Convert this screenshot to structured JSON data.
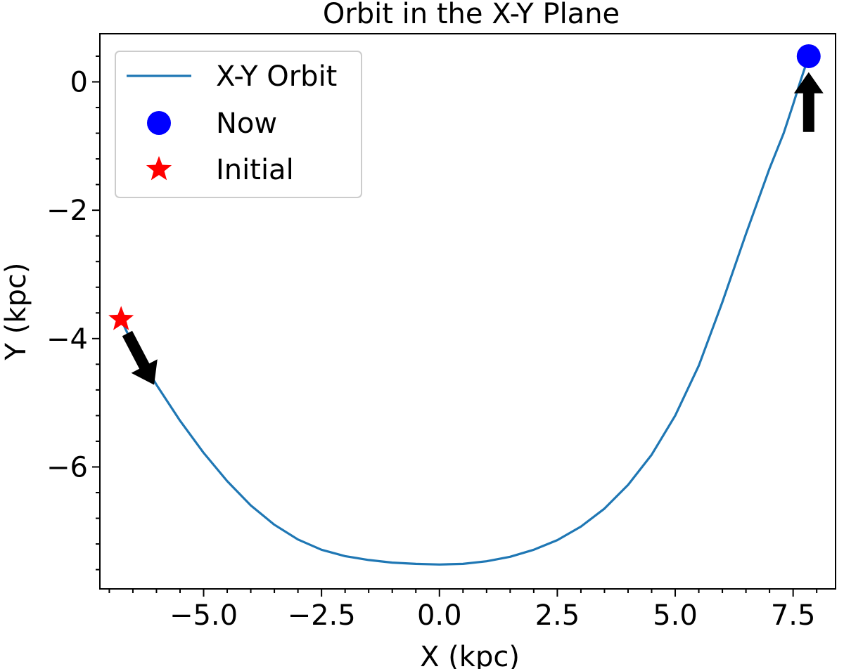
{
  "chart_data": {
    "type": "line",
    "title": "Orbit in the X-Y Plane",
    "xlabel": "X (kpc)",
    "ylabel": "Y (kpc)",
    "xlim": [
      -7.2,
      8.4
    ],
    "ylim": [
      -7.9,
      0.75
    ],
    "xticks": [
      -5.0,
      -2.5,
      0.0,
      2.5,
      5.0,
      7.5
    ],
    "xtick_labels": [
      "−5.0",
      "−2.5",
      "0.0",
      "2.5",
      "5.0",
      "7.5"
    ],
    "yticks": [
      0,
      -2,
      -4,
      -6
    ],
    "ytick_labels": [
      "0",
      "−2",
      "−4",
      "−6"
    ],
    "grid": false,
    "legend_position": "top-left",
    "series": [
      {
        "name": "X-Y Orbit",
        "kind": "line",
        "color": "#1f77b4",
        "x": [
          -6.75,
          -6.5,
          -6.0,
          -5.5,
          -5.0,
          -4.5,
          -4.0,
          -3.5,
          -3.0,
          -2.5,
          -2.0,
          -1.5,
          -1.0,
          -0.5,
          0.0,
          0.5,
          1.0,
          1.5,
          2.0,
          2.5,
          3.0,
          3.5,
          4.0,
          4.5,
          5.0,
          5.5,
          6.0,
          6.5,
          7.0,
          7.3,
          7.5,
          7.65,
          7.75,
          7.8,
          7.83
        ],
        "y": [
          -3.7,
          -4.1,
          -4.72,
          -5.28,
          -5.78,
          -6.22,
          -6.6,
          -6.9,
          -7.13,
          -7.29,
          -7.39,
          -7.45,
          -7.49,
          -7.51,
          -7.52,
          -7.51,
          -7.47,
          -7.4,
          -7.29,
          -7.14,
          -6.93,
          -6.65,
          -6.28,
          -5.81,
          -5.2,
          -4.42,
          -3.43,
          -2.37,
          -1.35,
          -0.8,
          -0.35,
          0.0,
          0.22,
          0.35,
          0.4
        ]
      },
      {
        "name": "Now",
        "kind": "marker",
        "marker": "circle",
        "color": "#0000ff",
        "x": [
          7.83
        ],
        "y": [
          0.4
        ]
      },
      {
        "name": "Initial",
        "kind": "marker",
        "marker": "star",
        "color": "#ff0000",
        "x": [
          -6.75
        ],
        "y": [
          -3.7
        ]
      }
    ],
    "annotations": [
      {
        "kind": "arrow",
        "color": "#000000",
        "from": [
          -6.62,
          -3.92
        ],
        "to": [
          -6.05,
          -4.72
        ]
      },
      {
        "kind": "arrow",
        "color": "#000000",
        "from": [
          7.83,
          -0.78
        ],
        "to": [
          7.83,
          0.15
        ]
      }
    ]
  }
}
